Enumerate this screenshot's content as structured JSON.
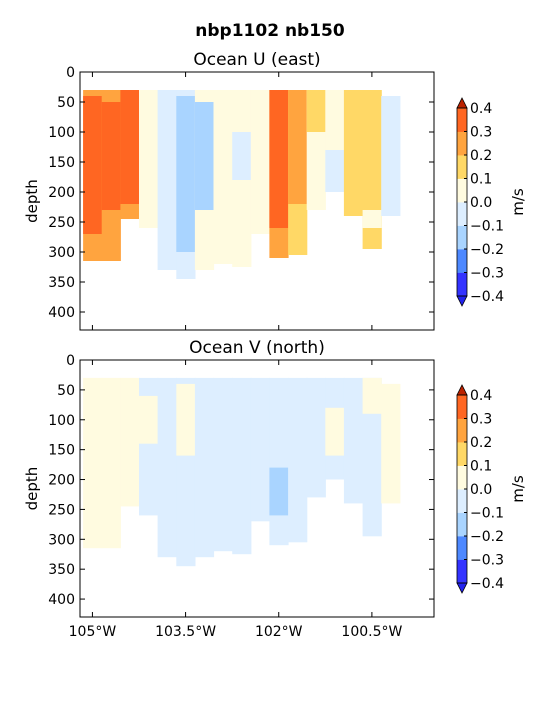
{
  "title": "nbp1102 nb150",
  "colors": {
    "levels": [
      "#3333ff",
      "#4d88ff",
      "#a9d4ff",
      "#ddeeff",
      "#fffbe0",
      "#ffd866",
      "#ffa43f",
      "#ff6622",
      "#cc2200"
    ],
    "extend_min": "#2222ee",
    "extend_max": "#bb2200"
  },
  "chart_data": [
    {
      "type": "filled-contour",
      "title": "Ocean U (east)",
      "ylabel": "depth",
      "xlabel": "",
      "xlim": [
        -105.2,
        -99.5
      ],
      "ylim": [
        430,
        0
      ],
      "yticks": [
        0,
        50,
        100,
        150,
        200,
        250,
        300,
        350,
        400
      ],
      "xticks": [
        -105,
        -103.5,
        -102,
        -100.5
      ],
      "xtick_labels": [],
      "colorbar": {
        "label": "m/s",
        "levels": [
          -0.4,
          -0.3,
          -0.2,
          -0.1,
          0.0,
          0.1,
          0.2,
          0.3,
          0.4
        ],
        "tick_labels": [
          "−0.4",
          "−0.3",
          "−0.2",
          "−0.1",
          "0.0",
          "0.1",
          "0.2",
          "0.3",
          "0.4"
        ]
      },
      "columns": [
        {
          "lon": -105.0,
          "bottom": 315,
          "segs": [
            [
              30,
              315,
              0.25
            ],
            [
              40,
              270,
              0.35
            ]
          ]
        },
        {
          "lon": -104.7,
          "bottom": 315,
          "segs": [
            [
              30,
              315,
              0.25
            ],
            [
              50,
              230,
              0.35
            ]
          ]
        },
        {
          "lon": -104.4,
          "bottom": 245,
          "segs": [
            [
              30,
              245,
              0.25
            ],
            [
              30,
              220,
              0.35
            ]
          ]
        },
        {
          "lon": -104.1,
          "bottom": 260,
          "segs": [
            [
              30,
              260,
              0.05
            ]
          ]
        },
        {
          "lon": -103.8,
          "bottom": 330,
          "segs": [
            [
              30,
              330,
              -0.05
            ]
          ]
        },
        {
          "lon": -103.5,
          "bottom": 345,
          "segs": [
            [
              30,
              345,
              -0.05
            ],
            [
              40,
              300,
              -0.15
            ]
          ]
        },
        {
          "lon": -103.2,
          "bottom": 330,
          "segs": [
            [
              30,
              330,
              0.05
            ],
            [
              50,
              230,
              -0.15
            ]
          ]
        },
        {
          "lon": -102.9,
          "bottom": 320,
          "segs": [
            [
              30,
              320,
              0.05
            ]
          ]
        },
        {
          "lon": -102.6,
          "bottom": 325,
          "segs": [
            [
              30,
              325,
              0.05
            ],
            [
              100,
              180,
              -0.05
            ]
          ]
        },
        {
          "lon": -102.3,
          "bottom": 270,
          "segs": [
            [
              30,
              270,
              0.05
            ]
          ]
        },
        {
          "lon": -102.0,
          "bottom": 310,
          "segs": [
            [
              30,
              310,
              0.25
            ],
            [
              30,
              260,
              0.35
            ]
          ]
        },
        {
          "lon": -101.7,
          "bottom": 305,
          "segs": [
            [
              30,
              305,
              0.15
            ],
            [
              30,
              220,
              0.25
            ]
          ]
        },
        {
          "lon": -101.4,
          "bottom": 230,
          "segs": [
            [
              30,
              230,
              0.05
            ],
            [
              30,
              100,
              0.15
            ]
          ]
        },
        {
          "lon": -101.1,
          "bottom": 200,
          "segs": [
            [
              30,
              200,
              0.05
            ],
            [
              130,
              200,
              -0.05
            ]
          ]
        },
        {
          "lon": -100.8,
          "bottom": 240,
          "segs": [
            [
              30,
              240,
              0.15
            ]
          ]
        },
        {
          "lon": -100.5,
          "bottom": 295,
          "segs": [
            [
              30,
              295,
              0.15
            ],
            [
              230,
              260,
              0.05
            ]
          ]
        },
        {
          "lon": -100.2,
          "bottom": 240,
          "segs": [
            [
              40,
              240,
              -0.05
            ]
          ]
        }
      ]
    },
    {
      "type": "filled-contour",
      "title": "Ocean V (north)",
      "ylabel": "depth",
      "xlabel": "",
      "xlim": [
        -105.2,
        -99.5
      ],
      "ylim": [
        430,
        0
      ],
      "yticks": [
        0,
        50,
        100,
        150,
        200,
        250,
        300,
        350,
        400
      ],
      "xticks": [
        -105,
        -103.5,
        -102,
        -100.5
      ],
      "xtick_labels": [
        "105°W",
        "103.5°W",
        "102°W",
        "100.5°W"
      ],
      "colorbar": {
        "label": "m/s",
        "levels": [
          -0.4,
          -0.3,
          -0.2,
          -0.1,
          0.0,
          0.1,
          0.2,
          0.3,
          0.4
        ],
        "tick_labels": [
          "−0.4",
          "−0.3",
          "−0.2",
          "−0.1",
          "0.0",
          "0.1",
          "0.2",
          "0.3",
          "0.4"
        ]
      },
      "columns": [
        {
          "lon": -105.0,
          "bottom": 315,
          "segs": [
            [
              30,
              315,
              0.05
            ]
          ]
        },
        {
          "lon": -104.7,
          "bottom": 315,
          "segs": [
            [
              30,
              315,
              0.05
            ]
          ]
        },
        {
          "lon": -104.4,
          "bottom": 245,
          "segs": [
            [
              30,
              245,
              0.05
            ]
          ]
        },
        {
          "lon": -104.1,
          "bottom": 260,
          "segs": [
            [
              30,
              260,
              -0.05
            ],
            [
              60,
              140,
              0.05
            ]
          ]
        },
        {
          "lon": -103.8,
          "bottom": 330,
          "segs": [
            [
              30,
              330,
              -0.05
            ]
          ]
        },
        {
          "lon": -103.5,
          "bottom": 345,
          "segs": [
            [
              30,
              345,
              -0.05
            ],
            [
              40,
              160,
              0.05
            ]
          ]
        },
        {
          "lon": -103.2,
          "bottom": 330,
          "segs": [
            [
              30,
              330,
              -0.05
            ]
          ]
        },
        {
          "lon": -102.9,
          "bottom": 320,
          "segs": [
            [
              30,
              320,
              -0.05
            ]
          ]
        },
        {
          "lon": -102.6,
          "bottom": 325,
          "segs": [
            [
              30,
              325,
              -0.05
            ]
          ]
        },
        {
          "lon": -102.3,
          "bottom": 270,
          "segs": [
            [
              30,
              270,
              -0.05
            ]
          ]
        },
        {
          "lon": -102.0,
          "bottom": 310,
          "segs": [
            [
              30,
              310,
              -0.05
            ],
            [
              180,
              260,
              -0.15
            ]
          ]
        },
        {
          "lon": -101.7,
          "bottom": 305,
          "segs": [
            [
              30,
              305,
              -0.05
            ]
          ]
        },
        {
          "lon": -101.4,
          "bottom": 230,
          "segs": [
            [
              30,
              230,
              -0.05
            ]
          ]
        },
        {
          "lon": -101.1,
          "bottom": 200,
          "segs": [
            [
              30,
              200,
              -0.05
            ],
            [
              80,
              160,
              0.05
            ]
          ]
        },
        {
          "lon": -100.8,
          "bottom": 240,
          "segs": [
            [
              30,
              240,
              -0.05
            ]
          ]
        },
        {
          "lon": -100.5,
          "bottom": 295,
          "segs": [
            [
              30,
              295,
              -0.05
            ],
            [
              30,
              90,
              0.05
            ]
          ]
        },
        {
          "lon": -100.2,
          "bottom": 240,
          "segs": [
            [
              40,
              240,
              0.05
            ]
          ]
        }
      ]
    }
  ]
}
